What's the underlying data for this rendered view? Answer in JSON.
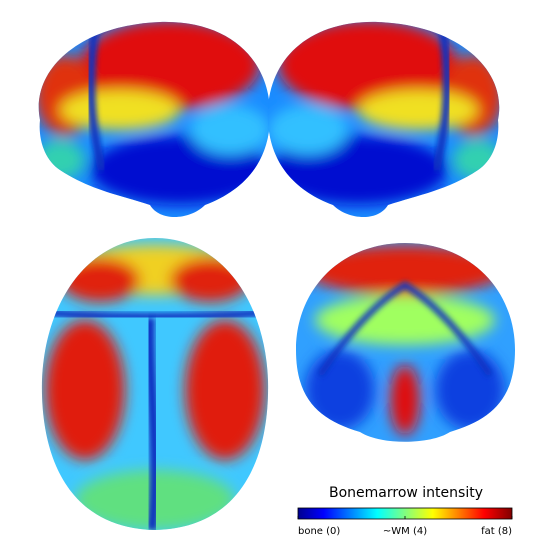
{
  "colorbar": {
    "title": "Bonemarrow intensity",
    "range": [
      0,
      8
    ],
    "ticks": [
      {
        "value": 0,
        "label": "bone (0)"
      },
      {
        "value": 4,
        "label": "~WM (4)"
      },
      {
        "value": 8,
        "label": "fat (8)"
      }
    ]
  }
}
